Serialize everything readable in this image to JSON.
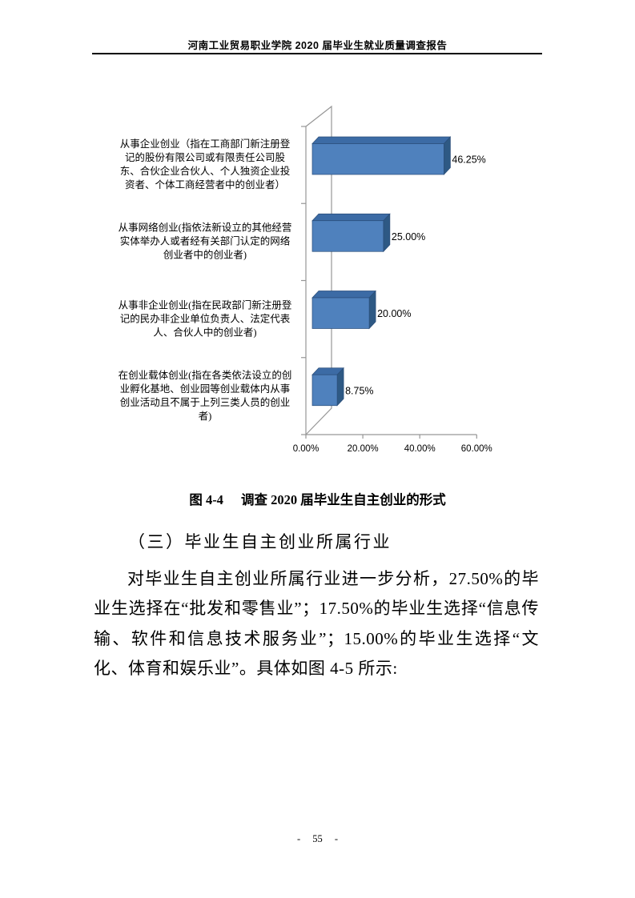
{
  "header": {
    "title": "河南工业贸易职业学院 2020 届毕业生就业质量调查报告"
  },
  "chart_data": {
    "type": "bar",
    "orientation": "horizontal",
    "style": "3d",
    "title": "",
    "xlabel": "",
    "ylabel": "",
    "grid": false,
    "legend": "none",
    "xlim": [
      0,
      60
    ],
    "x_tick_labels": [
      "0.00%",
      "20.00%",
      "40.00%",
      "60.00%"
    ],
    "categories": [
      [
        "从事企业创业（指在工商部门新注册登",
        "记的股份有限公司或有限责任公司股",
        "东、合伙企业合伙人、个人独资企业投",
        "资者、个体工商经营者中的创业者）"
      ],
      [
        "从事网络创业(指依法新设立的其他经营",
        "实体举办人或者经有关部门认定的网络",
        "创业者中的创业者)"
      ],
      [
        "从事非企业创业(指在民政部门新注册登",
        "记的民办非企业单位负责人、法定代表",
        "人、合伙人中的创业者)"
      ],
      [
        "在创业载体创业(指在各类依法设立的创",
        "业孵化基地、创业园等创业载体内从事",
        "创业活动且不属于上列三类人员的创业",
        "者)"
      ]
    ],
    "values": [
      46.25,
      25.0,
      20.0,
      8.75
    ],
    "value_labels": [
      "46.25%",
      "25.00%",
      "20.00%",
      "8.75%"
    ],
    "colors": {
      "bar_front": "#4f81bd",
      "bar_top": "#3c6ba5",
      "bar_side": "#2e5984",
      "bar_outline": "#2a4d79",
      "axis_line": "#969696",
      "label_text": "#000000"
    }
  },
  "caption": {
    "figure_no": "图 4-4",
    "title": "调查 2020 届毕业生自主创业的形式"
  },
  "section": {
    "heading": "（三）毕业生自主创业所属行业"
  },
  "paragraph": {
    "text": "对毕业生自主创业所属行业进一步分析，27.50%的毕业生选择在“批发和零售业”；17.50%的毕业生选择“信息传输、软件和信息技术服务业”；15.00%的毕业生选择“文化、体育和娱乐业”。具体如图 4-5 所示:"
  },
  "footer": {
    "page_number": "- 55 -"
  }
}
